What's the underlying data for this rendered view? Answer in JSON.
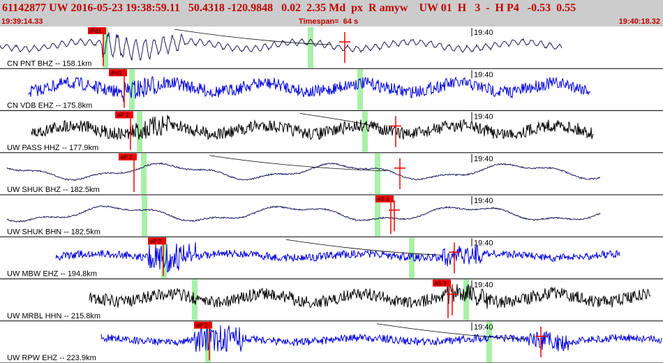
{
  "header": {
    "title": "61142877 UW 2016-05-23 19:38:59.11   50.4318 -120.9848   0.02  2.35 Md  px  R amyw    UW 01  H   3  -  H P4   -0.53  0.55",
    "start_time": "19:39:14.33",
    "timespan": "Timespan=  64 s",
    "end_time": "19:40:18.32"
  },
  "minute_tick": "19:40",
  "colors": {
    "header_bg": "#cccccc",
    "header_text": "#c00000",
    "pick_flag": "#ee0000",
    "gap_marker": "#a8f0a8",
    "blue_trace": "#0000dd",
    "black_trace": "#000000",
    "navy_trace": "#1a1a5c"
  },
  "channels": [
    {
      "label": "CN PNT BHZ -- 158.1km",
      "pick": "iPd1",
      "color": "navy",
      "style": "decay"
    },
    {
      "label": "CN VDB EHZ -- 175.8km",
      "pick": "iPd1",
      "color": "blue",
      "style": "noise"
    },
    {
      "label": "UW PASS HHZ -- 177.9km",
      "pick": "eP 2",
      "pick2": "",
      "color": "black",
      "style": "noise"
    },
    {
      "label": "UW SHUK BHZ -- 182.5km",
      "pick": "eP 2",
      "color": "navy",
      "style": "wave"
    },
    {
      "label": "UW SHUK BHN -- 182.5km",
      "pick": "eS 3",
      "color": "navy",
      "style": "wave"
    },
    {
      "label": "UW MBW EHZ -- 194.8km",
      "pick": "eP 2",
      "color": "blue",
      "style": "burst"
    },
    {
      "label": "UW MRBL HHN -- 215.8km",
      "pick": "eS 3",
      "color": "black",
      "style": "noise"
    },
    {
      "label": "UW RPW EHZ -- 223.9km",
      "pick": "eP 2",
      "color": "blue",
      "style": "burst"
    }
  ]
}
